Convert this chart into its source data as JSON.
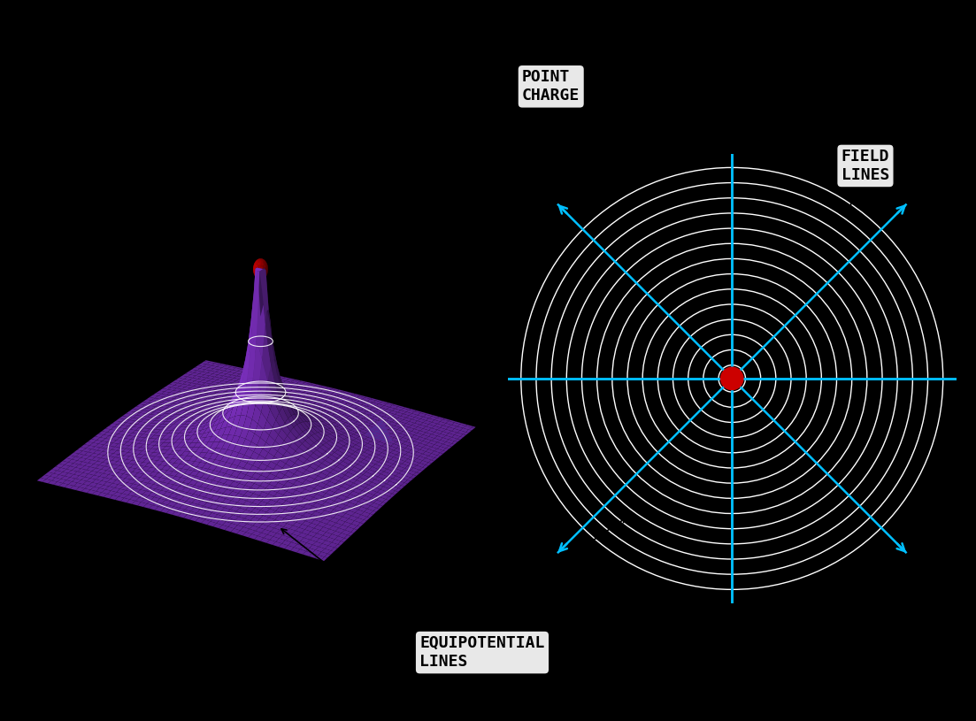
{
  "background_color": "#000000",
  "purple_color": "#7B2FBE",
  "purple_dark": "#6A1FA8",
  "white_color": "#FFFFFF",
  "cyan_color": "#00BFFF",
  "red_color": "#CC0000",
  "blue_color": "#1E90FF",
  "label_bg": "#E8E8E8",
  "n_equipotential_circles": 12,
  "n_field_lines": 8,
  "point_charge_label": "POINT\nCHARGE",
  "field_lines_label": "FIELD\nLINES",
  "equipotential_label": "EQUIPOTENTIAL\nLINES",
  "label_fontsize": 14,
  "label_fontsize_bold": true
}
